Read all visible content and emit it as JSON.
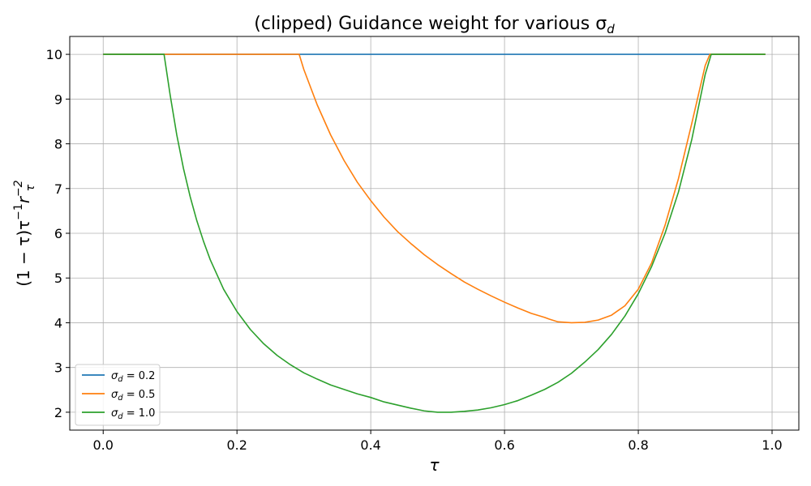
{
  "chart_data": {
    "type": "line",
    "title": "(clipped) Guidance weight for various σ_d",
    "title_parts": {
      "prefix": "(clipped) Guidance weight for various σ",
      "subscript": "d"
    },
    "xlabel": "τ",
    "ylabel": "(1 − τ)τ⁻¹r_τ⁻²",
    "ylabel_parts": {
      "a": "(1 − τ)τ",
      "a_sup": "−1",
      "b": "r",
      "b_sub": "τ",
      "b_sup": "−2"
    },
    "xlim": [
      -0.05,
      1.04
    ],
    "ylim": [
      1.6,
      10.4
    ],
    "xticks": [
      0.0,
      0.2,
      0.4,
      0.6,
      0.8,
      1.0
    ],
    "xtick_labels": [
      "0.0",
      "0.2",
      "0.4",
      "0.6",
      "0.8",
      "1.0"
    ],
    "yticks": [
      2,
      3,
      4,
      5,
      6,
      7,
      8,
      9,
      10
    ],
    "ytick_labels": [
      "2",
      "3",
      "4",
      "5",
      "6",
      "7",
      "8",
      "9",
      "10"
    ],
    "grid": true,
    "legend": {
      "placement": "lower-left",
      "entries": [
        {
          "sym": "σ",
          "sub": "d",
          "rest": " = 0.2"
        },
        {
          "sym": "σ",
          "sub": "d",
          "rest": " = 0.5"
        },
        {
          "sym": "σ",
          "sub": "d",
          "rest": " = 1.0"
        }
      ]
    },
    "colors": [
      "#1f77b4",
      "#ff7f0e",
      "#2ca02c"
    ],
    "series": [
      {
        "name": "σ_d = 0.2",
        "x": [
          0.0,
          0.99
        ],
        "y": [
          10.0,
          10.0
        ]
      },
      {
        "name": "σ_d = 0.5",
        "x": [
          0.0,
          0.293,
          0.3,
          0.32,
          0.34,
          0.36,
          0.38,
          0.4,
          0.42,
          0.44,
          0.46,
          0.48,
          0.5,
          0.52,
          0.54,
          0.56,
          0.58,
          0.6,
          0.62,
          0.64,
          0.66,
          0.667,
          0.68,
          0.7,
          0.72,
          0.74,
          0.76,
          0.78,
          0.8,
          0.82,
          0.84,
          0.86,
          0.88,
          0.9,
          0.907,
          0.99
        ],
        "y": [
          10.0,
          10.0,
          9.66,
          8.87,
          8.2,
          7.63,
          7.14,
          6.73,
          6.36,
          6.04,
          5.77,
          5.52,
          5.3,
          5.1,
          4.91,
          4.75,
          4.6,
          4.46,
          4.33,
          4.21,
          4.12,
          4.08,
          4.02,
          4.0,
          4.01,
          4.06,
          4.17,
          4.38,
          4.75,
          5.34,
          6.18,
          7.22,
          8.46,
          9.75,
          10.0,
          10.0
        ]
      },
      {
        "name": "σ_d = 1.0",
        "x": [
          0.0,
          0.091,
          0.1,
          0.11,
          0.12,
          0.13,
          0.14,
          0.15,
          0.16,
          0.18,
          0.2,
          0.22,
          0.24,
          0.26,
          0.28,
          0.3,
          0.32,
          0.34,
          0.36,
          0.38,
          0.4,
          0.42,
          0.44,
          0.46,
          0.48,
          0.5,
          0.52,
          0.54,
          0.56,
          0.58,
          0.6,
          0.62,
          0.64,
          0.66,
          0.68,
          0.7,
          0.72,
          0.74,
          0.76,
          0.78,
          0.8,
          0.82,
          0.84,
          0.86,
          0.88,
          0.9,
          0.909,
          0.99
        ],
        "y": [
          10.0,
          10.0,
          9.1,
          8.2,
          7.45,
          6.82,
          6.28,
          5.82,
          5.41,
          4.75,
          4.25,
          3.85,
          3.53,
          3.27,
          3.06,
          2.88,
          2.74,
          2.61,
          2.51,
          2.41,
          2.33,
          2.23,
          2.16,
          2.09,
          2.03,
          2.0,
          2.0,
          2.02,
          2.05,
          2.1,
          2.17,
          2.26,
          2.38,
          2.51,
          2.67,
          2.87,
          3.12,
          3.4,
          3.74,
          4.15,
          4.65,
          5.26,
          6.0,
          6.92,
          8.1,
          9.55,
          10.0,
          10.0
        ]
      }
    ]
  }
}
